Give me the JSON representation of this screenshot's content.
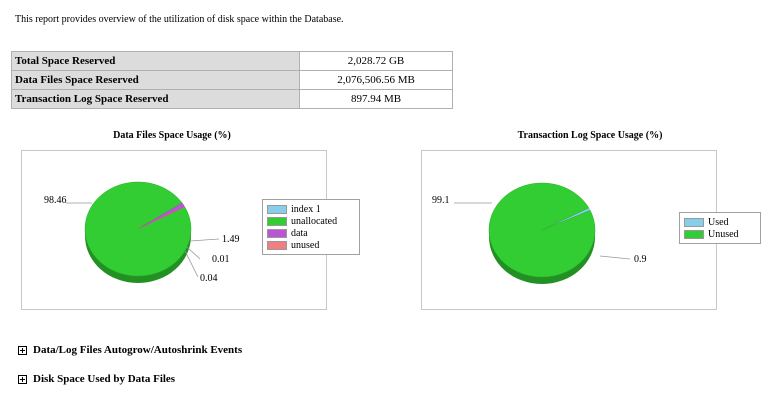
{
  "intro": "This report provides overview of the utilization of disk space within the Database.",
  "summary": [
    {
      "label": "Total Space Reserved",
      "value": "2,028.72 GB"
    },
    {
      "label": "Data Files Space Reserved",
      "value": "2,076,506.56 MB"
    },
    {
      "label": "Transaction Log Space Reserved",
      "value": "897.94 MB"
    }
  ],
  "chart_data": [
    {
      "type": "pie",
      "title": "Data Files Space Usage (%)",
      "categories": [
        "index 1",
        "unallocated",
        "data",
        "unused"
      ],
      "values": [
        0.01,
        98.46,
        1.49,
        0.04
      ],
      "data_labels": [
        "0.01",
        "98.46",
        "1.49",
        "0.04"
      ],
      "colors": [
        "#87ceeb",
        "#32cd32",
        "#ba55d3",
        "#f08080"
      ],
      "legend_position": "right"
    },
    {
      "type": "pie",
      "title": "Transaction Log Space Usage (%)",
      "categories": [
        "Used",
        "Unused"
      ],
      "values": [
        0.9,
        99.1
      ],
      "data_labels": [
        "0.9",
        "99.1"
      ],
      "colors": [
        "#87ceeb",
        "#32cd32"
      ],
      "legend_position": "right"
    }
  ],
  "sections": [
    {
      "label": "Data/Log Files Autogrow/Autoshrink Events"
    },
    {
      "label": "Disk Space Used by Data Files"
    }
  ]
}
